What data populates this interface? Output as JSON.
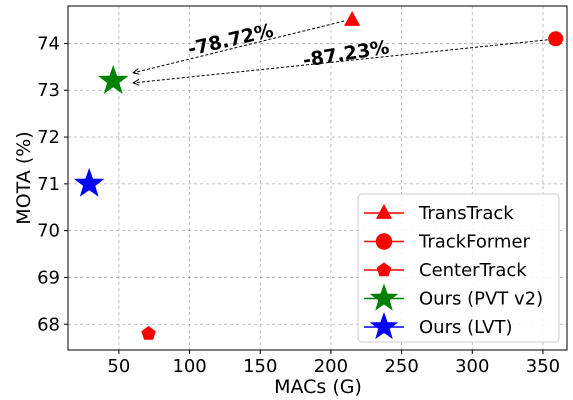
{
  "chart_data": {
    "type": "scatter",
    "xlabel": "MACs (G)",
    "ylabel": "MOTA (%)",
    "xlim": [
      14,
      367
    ],
    "ylim": [
      67.45,
      74.8
    ],
    "xticks": [
      50,
      100,
      150,
      200,
      250,
      300,
      350
    ],
    "yticks": [
      68,
      69,
      70,
      71,
      72,
      73,
      74
    ],
    "xtick_labels": [
      "50",
      "100",
      "150",
      "200",
      "250",
      "300",
      "350"
    ],
    "ytick_labels": [
      "68",
      "69",
      "70",
      "71",
      "72",
      "73",
      "74"
    ],
    "grid": true,
    "legend_position": "lower-right",
    "series": [
      {
        "name": "TransTrack",
        "marker": "triangle",
        "color": "#ff0000",
        "x": 215,
        "y": 74.5
      },
      {
        "name": "TrackFormer",
        "marker": "circle",
        "color": "#ff0000",
        "x": 359,
        "y": 74.1
      },
      {
        "name": "CenterTrack",
        "marker": "pentagon",
        "color": "#ff0000",
        "x": 71,
        "y": 67.8
      },
      {
        "name": "Ours (PVT v2)",
        "marker": "star",
        "color": "#008000",
        "x": 46,
        "y": 73.2
      },
      {
        "name": "Ours (LVT)",
        "marker": "star",
        "color": "#0000ff",
        "x": 29,
        "y": 71.0
      }
    ],
    "annotations": [
      {
        "text": "-78.72%",
        "from": [
          215,
          74.5
        ],
        "to": [
          46,
          73.2
        ]
      },
      {
        "text": "-87.23%",
        "from": [
          359,
          74.1
        ],
        "to": [
          46,
          73.2
        ]
      }
    ]
  }
}
